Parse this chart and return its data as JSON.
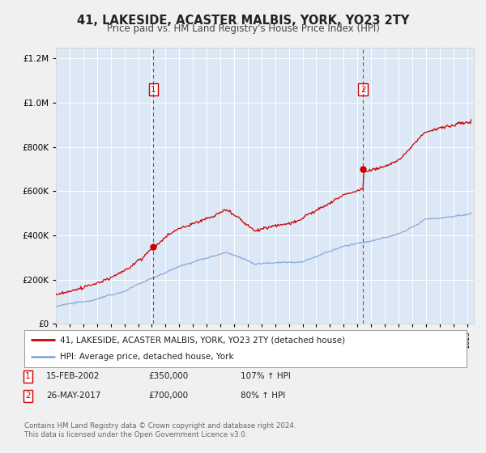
{
  "title": "41, LAKESIDE, ACASTER MALBIS, YORK, YO23 2TY",
  "subtitle": "Price paid vs. HM Land Registry's House Price Index (HPI)",
  "title_fontsize": 10.5,
  "subtitle_fontsize": 8.5,
  "fig_bg_color": "#f0f0f0",
  "plot_bg_color": "#dce8f5",
  "grid_color": "#ffffff",
  "red_line_color": "#cc0000",
  "blue_line_color": "#88aadd",
  "sale1_year": 2002.12,
  "sale1_price": 350000,
  "sale2_year": 2017.42,
  "sale2_price": 700000,
  "ylim_max": 1250000,
  "ylim_min": 0,
  "xlim_min": 1995,
  "xlim_max": 2025.5,
  "legend1_text": "41, LAKESIDE, ACASTER MALBIS, YORK, YO23 2TY (detached house)",
  "legend2_text": "HPI: Average price, detached house, York",
  "table_row1": [
    "1",
    "15-FEB-2002",
    "£350,000",
    "107% ↑ HPI"
  ],
  "table_row2": [
    "2",
    "26-MAY-2017",
    "£700,000",
    "80% ↑ HPI"
  ],
  "footer1": "Contains HM Land Registry data © Crown copyright and database right 2024.",
  "footer2": "This data is licensed under the Open Government Licence v3.0."
}
